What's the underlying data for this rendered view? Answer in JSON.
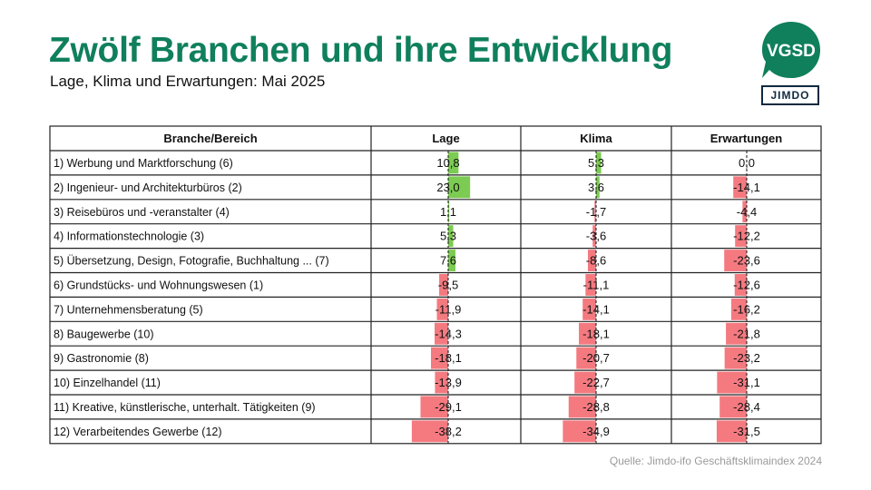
{
  "header": {
    "title": "Zwölf Branchen und ihre Entwicklung",
    "subtitle": "Lage, Klima und Erwartungen: Mai 2025"
  },
  "logos": {
    "vgsd": "VGSD",
    "jimdo": "JIMDO"
  },
  "colors": {
    "brand": "#0f7f5c",
    "positive": "#7ccb52",
    "negative": "#f47a80",
    "border": "#222222"
  },
  "chart_data": {
    "type": "table",
    "columns": [
      "Branche/Bereich",
      "Lage",
      "Klima",
      "Erwartungen"
    ],
    "rows": [
      {
        "label": "1) Werbung und Marktforschung (6)",
        "values": [
          10.8,
          5.3,
          0.0
        ],
        "display": [
          "10,8",
          "5,3",
          "0,0"
        ]
      },
      {
        "label": "2) Ingenieur- und Architekturbüros (2)",
        "values": [
          23.0,
          3.6,
          -14.1
        ],
        "display": [
          "23,0",
          "3,6",
          "-14,1"
        ]
      },
      {
        "label": "3) Reisebüros und -veranstalter (4)",
        "values": [
          1.1,
          -1.7,
          -4.4
        ],
        "display": [
          "1,1",
          "-1,7",
          "-4,4"
        ]
      },
      {
        "label": "4) Informationstechnologie (3)",
        "values": [
          5.3,
          -3.6,
          -12.2
        ],
        "display": [
          "5,3",
          "-3,6",
          "-12,2"
        ]
      },
      {
        "label": "5) Übersetzung, Design, Fotografie, Buchhaltung ... (7)",
        "values": [
          7.6,
          -8.6,
          -23.6
        ],
        "display": [
          "7,6",
          "-8,6",
          "-23,6"
        ]
      },
      {
        "label": "6) Grundstücks- und Wohnungswesen (1)",
        "values": [
          -9.5,
          -11.1,
          -12.6
        ],
        "display": [
          "-9,5",
          "-11,1",
          "-12,6"
        ]
      },
      {
        "label": "7) Unternehmensberatung (5)",
        "values": [
          -11.9,
          -14.1,
          -16.2
        ],
        "display": [
          "-11,9",
          "-14,1",
          "-16,2"
        ]
      },
      {
        "label": "8) Baugewerbe (10)",
        "values": [
          -14.3,
          -18.1,
          -21.8
        ],
        "display": [
          "-14,3",
          "-18,1",
          "-21,8"
        ]
      },
      {
        "label": "9) Gastronomie (8)",
        "values": [
          -18.1,
          -20.7,
          -23.2
        ],
        "display": [
          "-18,1",
          "-20,7",
          "-23,2"
        ]
      },
      {
        "label": "10) Einzelhandel (11)",
        "values": [
          -13.9,
          -22.7,
          -31.1
        ],
        "display": [
          "-13,9",
          "-22,7",
          "-31,1"
        ]
      },
      {
        "label": "11) Kreative, künstlerische, unterhalt. Tätigkeiten (9)",
        "values": [
          -29.1,
          -28.8,
          -28.4
        ],
        "display": [
          "-29,1",
          "-28,8",
          "-28,4"
        ]
      },
      {
        "label": "12) Verarbeitendes Gewerbe (12)",
        "values": [
          -38.2,
          -34.9,
          -31.5
        ],
        "display": [
          "-38,2",
          "-34,9",
          "-31,5"
        ]
      }
    ],
    "value_range": [
      -40,
      25
    ]
  },
  "source": "Quelle: Jimdo-ifo Geschäftsklimaindex 2024"
}
